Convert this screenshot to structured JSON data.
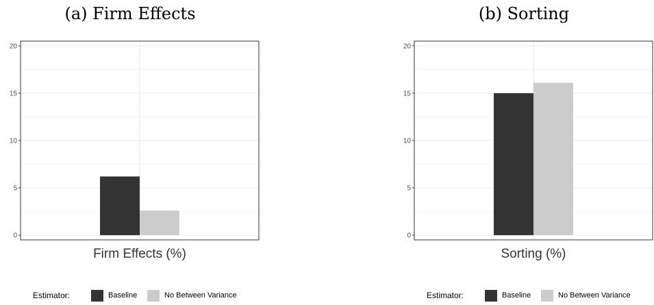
{
  "chart_data": [
    {
      "type": "bar",
      "title": "(a) Firm Effects",
      "xlabel": "Firm Effects (%)",
      "ylabel": "",
      "ylim": [
        -0.5,
        20.5
      ],
      "yticks": [
        0,
        5,
        10,
        15,
        20
      ],
      "grid": true,
      "legend_position": "bottom",
      "legend_title": "Estimator:",
      "series": [
        {
          "name": "Baseline",
          "values": [
            6.2
          ],
          "color": "#333333"
        },
        {
          "name": "No Between Variance",
          "values": [
            2.6
          ],
          "color": "#cccccc"
        }
      ]
    },
    {
      "type": "bar",
      "title": "(b) Sorting",
      "xlabel": "Sorting (%)",
      "ylabel": "",
      "ylim": [
        -0.5,
        20.5
      ],
      "yticks": [
        0,
        5,
        10,
        15,
        20
      ],
      "grid": true,
      "legend_position": "bottom",
      "legend_title": "Estimator:",
      "series": [
        {
          "name": "Baseline",
          "values": [
            15.0
          ],
          "color": "#333333"
        },
        {
          "name": "No Between Variance",
          "values": [
            16.1
          ],
          "color": "#cccccc"
        }
      ]
    }
  ]
}
